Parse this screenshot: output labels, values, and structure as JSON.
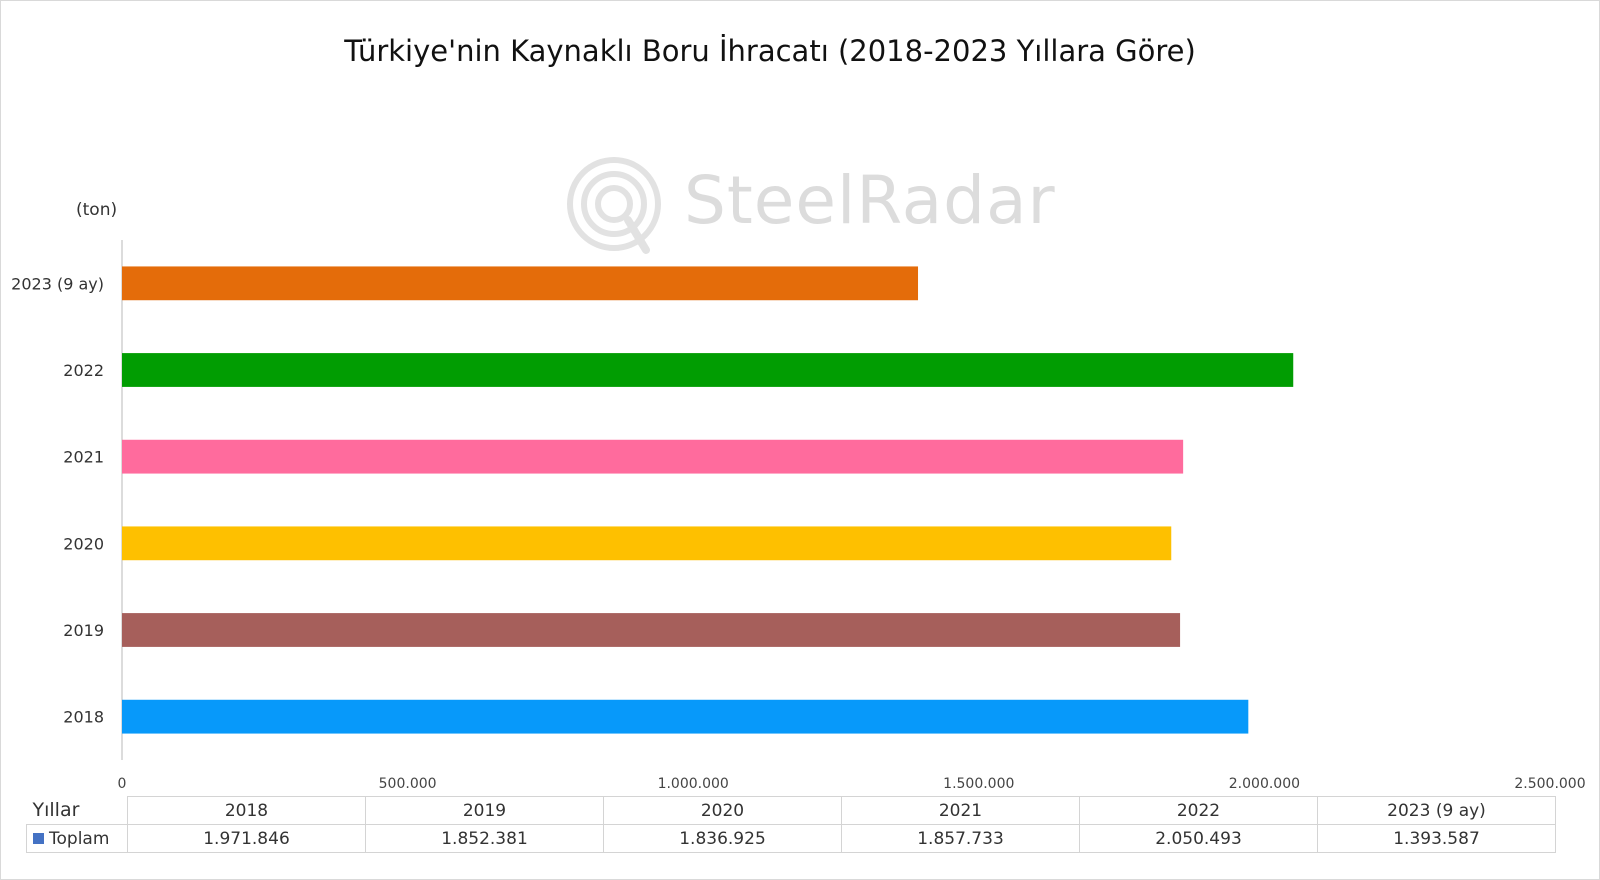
{
  "chart_data": {
    "type": "bar",
    "orientation": "horizontal",
    "title": "Türkiye'nin Kaynaklı Boru İhracatı (2018-2023 Yıllara Göre)",
    "unit_label": "(ton)",
    "watermark": "SteelRadar",
    "categories": [
      "2018",
      "2019",
      "2020",
      "2021",
      "2022",
      "2023 (9 ay)"
    ],
    "values": [
      1971846,
      1852381,
      1836925,
      1857733,
      2050493,
      1393587
    ],
    "bar_colors": [
      "#0799fa",
      "#a65f5b",
      "#fec000",
      "#ff6b9d",
      "#019d02",
      "#e46c0a"
    ],
    "xlim": [
      0,
      2500000
    ],
    "x_ticks": [
      0,
      500000,
      1000000,
      1500000,
      2000000,
      2500000
    ],
    "x_tick_labels": [
      "0",
      "500.000",
      "1.000.000",
      "1.500.000",
      "2.000.000",
      "2.500.000"
    ],
    "grid": false,
    "legend": "data-table",
    "data_table": {
      "header_label": "Yıllar",
      "series_label": "Toplam",
      "series_color": "#4472c4",
      "columns": [
        "2018",
        "2019",
        "2020",
        "2021",
        "2022",
        "2023 (9 ay)"
      ],
      "values": [
        "1.971.846",
        "1.852.381",
        "1.836.925",
        "1.857.733",
        "2.050.493",
        "1.393.587"
      ]
    }
  }
}
